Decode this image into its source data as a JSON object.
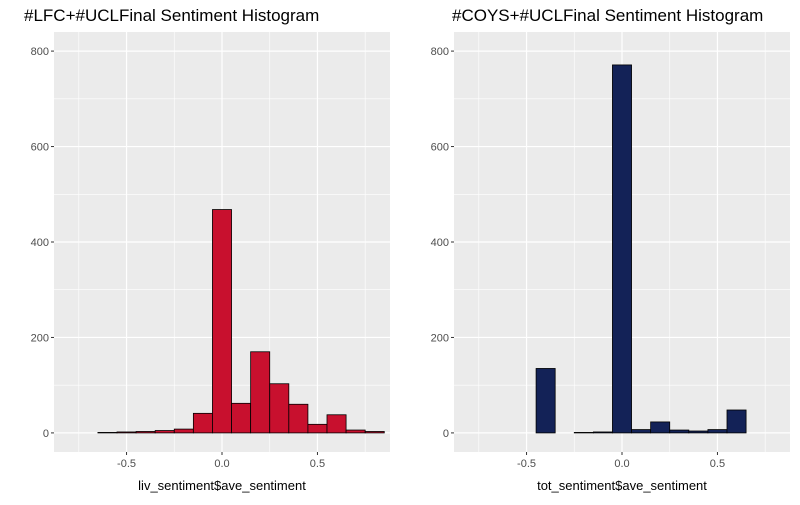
{
  "chart_data": [
    {
      "type": "bar",
      "title": "#LFC+#UCLFinal Sentiment Histogram",
      "xlabel": "liv_sentiment$ave_sentiment",
      "ylabel": "",
      "fill": "#C8102E",
      "xlim": [
        -0.88,
        0.88
      ],
      "ylim": [
        -40,
        840
      ],
      "x_ticks": [
        -0.5,
        0.0,
        0.5
      ],
      "x_tick_labels": [
        "-0.5",
        "0.0",
        "0.5"
      ],
      "y_ticks": [
        0,
        200,
        400,
        600,
        800
      ],
      "y_tick_labels": [
        "0",
        "200",
        "400",
        "600",
        "800"
      ],
      "bin_width": 0.1,
      "bin_centers": [
        -0.8,
        -0.7,
        -0.6,
        -0.5,
        -0.4,
        -0.3,
        -0.2,
        -0.1,
        0.0,
        0.1,
        0.2,
        0.3,
        0.4,
        0.5,
        0.6,
        0.7,
        0.8
      ],
      "values": [
        0,
        0,
        1,
        2,
        3,
        5,
        8,
        41,
        468,
        62,
        170,
        103,
        60,
        18,
        38,
        6,
        3
      ],
      "grid": true
    },
    {
      "type": "bar",
      "title": "#COYS+#UCLFinal Sentiment Histogram",
      "xlabel": "tot_sentiment$ave_sentiment",
      "ylabel": "",
      "fill": "#132257",
      "xlim": [
        -0.88,
        0.88
      ],
      "ylim": [
        -40,
        840
      ],
      "x_ticks": [
        -0.5,
        0.0,
        0.5
      ],
      "x_tick_labels": [
        "-0.5",
        "0.0",
        "0.5"
      ],
      "y_ticks": [
        0,
        200,
        400,
        600,
        800
      ],
      "y_tick_labels": [
        "0",
        "200",
        "400",
        "600",
        "800"
      ],
      "bin_width": 0.1,
      "bin_centers": [
        -0.8,
        -0.7,
        -0.6,
        -0.5,
        -0.4,
        -0.3,
        -0.2,
        -0.1,
        0.0,
        0.1,
        0.2,
        0.3,
        0.4,
        0.5,
        0.6,
        0.7,
        0.8
      ],
      "values": [
        0,
        0,
        0,
        0,
        135,
        0,
        1,
        2,
        771,
        7,
        23,
        6,
        4,
        7,
        48,
        0,
        0
      ],
      "grid": true
    }
  ]
}
